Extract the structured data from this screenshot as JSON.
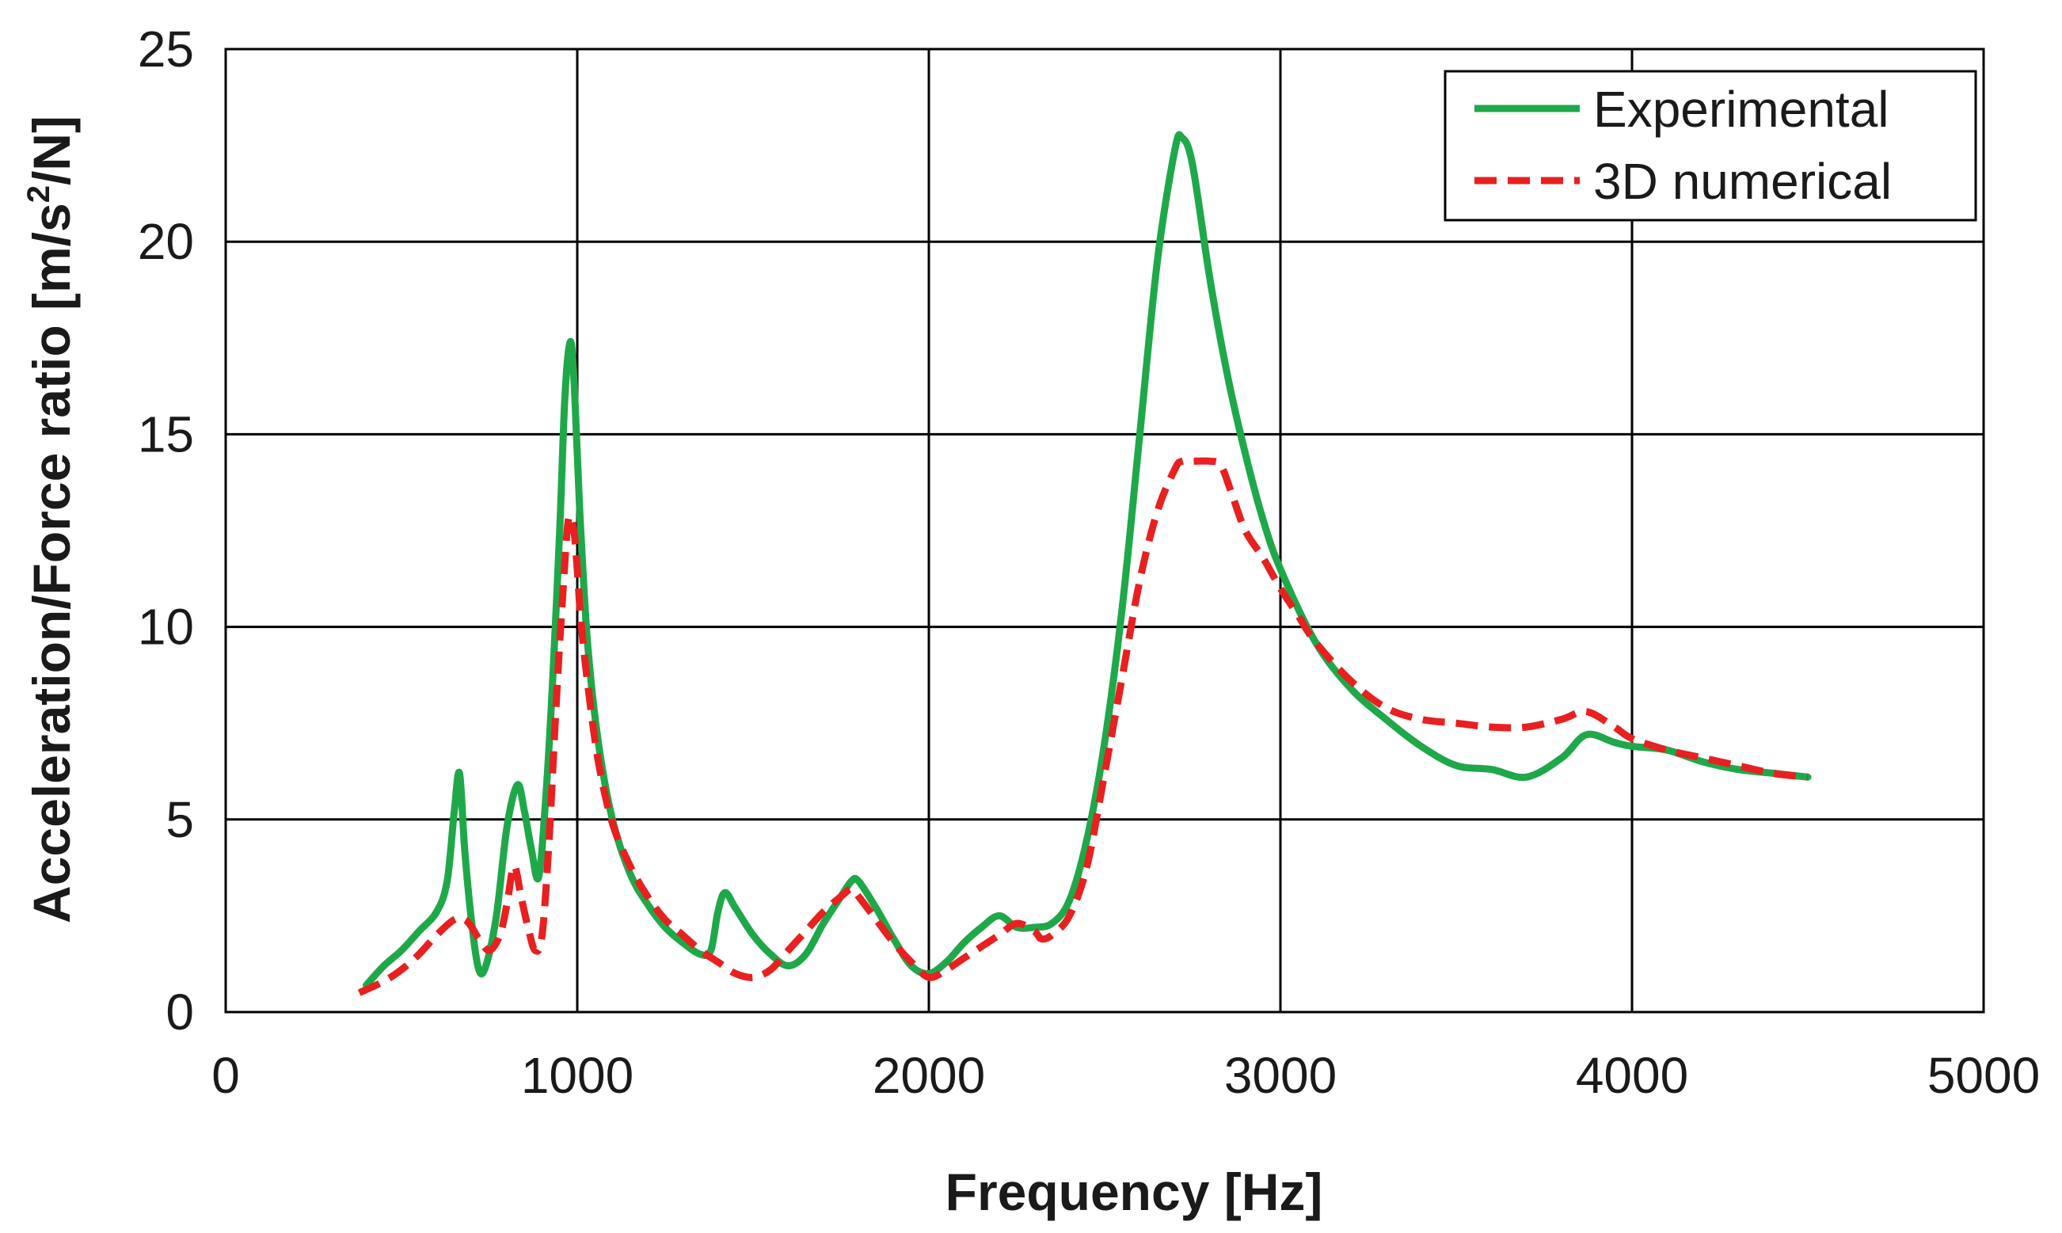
{
  "chart_data": {
    "type": "line",
    "title": "",
    "xlabel": "Frequency [Hz]",
    "ylabel": "Acceleration/Force ratio [m/s² /N]",
    "ylabel_main": "Acceleration/Force ratio [m/s",
    "ylabel_sup": "2",
    "ylabel_tail": "/N]",
    "xlim": [
      0,
      5000
    ],
    "ylim": [
      0,
      25
    ],
    "xticks": [
      0,
      1000,
      2000,
      3000,
      4000,
      5000
    ],
    "yticks": [
      0,
      5,
      10,
      15,
      20,
      25
    ],
    "xtick_labels": [
      "0",
      "1000",
      "2000",
      "3000",
      "4000",
      "5000"
    ],
    "ytick_labels": [
      "0",
      "5",
      "10",
      "15",
      "20",
      "25"
    ],
    "grid": true,
    "legend_position": "top-right",
    "series": [
      {
        "name": "Experimental",
        "color": "#1fa84a",
        "style": "solid",
        "x": [
          400,
          450,
          500,
          550,
          600,
          630,
          650,
          665,
          680,
          700,
          720,
          740,
          770,
          800,
          830,
          850,
          870,
          890,
          910,
          930,
          950,
          965,
          980,
          990,
          1000,
          1010,
          1030,
          1060,
          1100,
          1150,
          1200,
          1250,
          1300,
          1350,
          1380,
          1400,
          1420,
          1450,
          1500,
          1550,
          1600,
          1650,
          1700,
          1750,
          1780,
          1800,
          1850,
          1900,
          1950,
          2000,
          2050,
          2100,
          2150,
          2200,
          2250,
          2300,
          2350,
          2400,
          2450,
          2500,
          2550,
          2600,
          2650,
          2700,
          2720,
          2750,
          2800,
          2850,
          2900,
          2950,
          3000,
          3100,
          3200,
          3300,
          3400,
          3500,
          3600,
          3700,
          3800,
          3870,
          3950,
          4000,
          4100,
          4200,
          4300,
          4400,
          4500
        ],
        "values": [
          0.7,
          1.2,
          1.6,
          2.1,
          2.6,
          3.4,
          5.2,
          6.2,
          4.2,
          2.3,
          1.1,
          1.2,
          2.5,
          4.8,
          5.9,
          5.2,
          4.2,
          3.5,
          5.5,
          8.6,
          12.5,
          16.0,
          17.4,
          16.5,
          14.5,
          12.5,
          9.5,
          7.0,
          5.0,
          3.6,
          2.8,
          2.2,
          1.8,
          1.5,
          1.6,
          2.6,
          3.1,
          2.7,
          2.0,
          1.5,
          1.2,
          1.5,
          2.3,
          3.0,
          3.4,
          3.4,
          2.7,
          1.9,
          1.2,
          1.0,
          1.3,
          1.8,
          2.2,
          2.5,
          2.2,
          2.2,
          2.3,
          2.9,
          4.5,
          7.0,
          10.5,
          15.0,
          19.5,
          22.4,
          22.7,
          22.0,
          19.0,
          16.5,
          14.5,
          12.8,
          11.5,
          9.6,
          8.4,
          7.6,
          6.9,
          6.4,
          6.3,
          6.1,
          6.6,
          7.2,
          7.0,
          6.9,
          6.8,
          6.5,
          6.3,
          6.2,
          6.1
        ]
      },
      {
        "name": "3D numerical",
        "color": "#e82020",
        "style": "dashed",
        "x": [
          380,
          450,
          500,
          550,
          600,
          650,
          680,
          700,
          720,
          750,
          780,
          800,
          820,
          840,
          860,
          880,
          900,
          920,
          940,
          960,
          975,
          990,
          1000,
          1010,
          1030,
          1060,
          1100,
          1150,
          1200,
          1250,
          1300,
          1350,
          1400,
          1450,
          1500,
          1550,
          1600,
          1650,
          1700,
          1750,
          1780,
          1800,
          1850,
          1900,
          1950,
          2000,
          2050,
          2100,
          2150,
          2200,
          2250,
          2300,
          2320,
          2350,
          2400,
          2450,
          2500,
          2550,
          2600,
          2650,
          2700,
          2720,
          2750,
          2800,
          2830,
          2860,
          2900,
          2950,
          3000,
          3050,
          3100,
          3200,
          3300,
          3400,
          3500,
          3600,
          3700,
          3800,
          3870,
          3950,
          4000,
          4100,
          4200,
          4300,
          4400,
          4500
        ],
        "values": [
          0.5,
          0.8,
          1.1,
          1.5,
          2.0,
          2.4,
          2.4,
          2.2,
          1.9,
          1.6,
          2.0,
          2.8,
          3.8,
          3.0,
          2.2,
          1.6,
          2.0,
          4.5,
          8.0,
          11.0,
          12.8,
          12.5,
          11.5,
          10.2,
          8.5,
          6.5,
          4.9,
          3.8,
          3.0,
          2.4,
          2.0,
          1.6,
          1.3,
          1.0,
          0.9,
          1.1,
          1.6,
          2.1,
          2.6,
          3.0,
          3.2,
          3.0,
          2.4,
          1.8,
          1.3,
          0.9,
          1.1,
          1.4,
          1.7,
          2.0,
          2.3,
          2.1,
          1.9,
          2.0,
          2.5,
          3.8,
          6.2,
          8.7,
          11.2,
          13.0,
          14.1,
          14.3,
          14.3,
          14.3,
          14.2,
          13.5,
          12.5,
          11.8,
          11.0,
          10.3,
          9.6,
          8.6,
          7.9,
          7.6,
          7.5,
          7.4,
          7.4,
          7.6,
          7.8,
          7.4,
          7.1,
          6.8,
          6.6,
          6.4,
          6.2,
          6.1
        ]
      }
    ]
  }
}
